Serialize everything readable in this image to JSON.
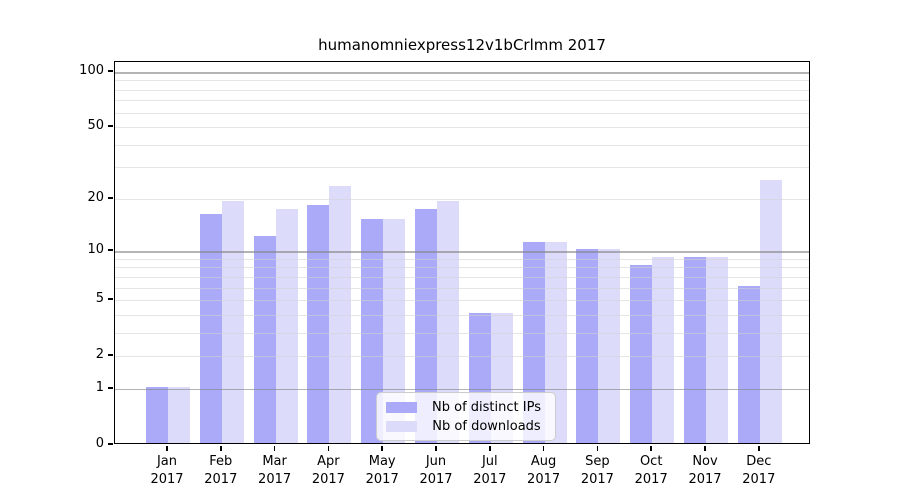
{
  "title": "humanomniexpress12v1bCrlmm 2017",
  "chart_data": {
    "type": "bar",
    "title": "humanomniexpress12v1bCrlmm 2017",
    "categories": [
      "Jan",
      "Feb",
      "Mar",
      "Apr",
      "May",
      "Jun",
      "Jul",
      "Aug",
      "Sep",
      "Oct",
      "Nov",
      "Dec"
    ],
    "year": "2017",
    "series": [
      {
        "name": "Nb of distinct IPs",
        "color": "#aaaaf8",
        "values": [
          1,
          16,
          12,
          18,
          15,
          17,
          4,
          11,
          10,
          8,
          9,
          6
        ]
      },
      {
        "name": "Nb of downloads",
        "color": "#dcdcfa",
        "values": [
          1,
          19,
          17,
          23,
          15,
          19,
          4,
          11,
          10,
          9,
          9,
          25
        ]
      }
    ],
    "xlabel": "",
    "ylabel": "",
    "yscale": "log1p",
    "ylim": [
      0,
      115
    ],
    "ytick_labels": [
      100,
      50,
      20,
      10,
      5,
      2,
      1,
      0
    ],
    "minor_gridlines": [
      2,
      3,
      4,
      5,
      6,
      7,
      8,
      9,
      20,
      30,
      40,
      50,
      60,
      70,
      80,
      90
    ],
    "major_gridlines": [
      1,
      10,
      100
    ],
    "grid": true,
    "legend_position": "bottom-center-inside"
  }
}
